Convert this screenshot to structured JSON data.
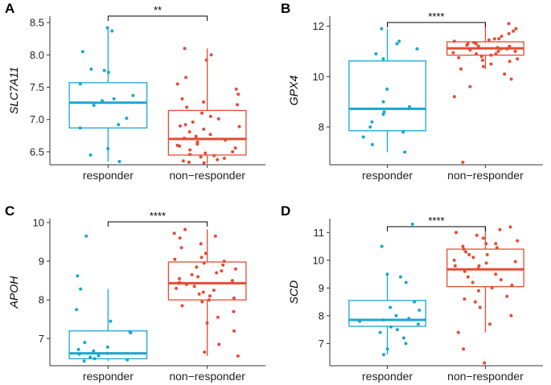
{
  "colors": {
    "responder": "#1aa7cf",
    "non_responder": "#e64b35",
    "axis": "#333333"
  },
  "chart_data": [
    {
      "panel": "A",
      "type": "box",
      "ylabel": "SLC7A11",
      "significance": "**",
      "categories": [
        "responder",
        "non−responder"
      ],
      "yticks": [
        6.5,
        7.0,
        7.5,
        8.0,
        8.5
      ],
      "ytick_labels": [
        "6.5",
        "7.0",
        "7.5",
        "8.0",
        "8.5"
      ],
      "ylim": [
        6.3,
        8.6
      ],
      "boxes": [
        {
          "min": 6.35,
          "q1": 6.87,
          "median": 7.26,
          "q3": 7.57,
          "max": 8.42
        },
        {
          "min": 6.32,
          "q1": 6.45,
          "median": 6.7,
          "q3": 7.14,
          "max": 8.1
        }
      ],
      "points": [
        [
          8.42,
          8.37,
          8.05,
          7.78,
          7.76,
          7.73,
          7.55,
          7.37,
          7.32,
          7.29,
          7.22,
          7.02,
          6.92,
          6.87,
          6.55,
          6.45,
          6.35
        ],
        [
          8.1,
          8.0,
          7.92,
          7.65,
          7.55,
          7.47,
          7.39,
          7.32,
          7.27,
          7.23,
          7.19,
          7.1,
          7.05,
          7.01,
          6.96,
          6.92,
          6.89,
          6.85,
          6.81,
          6.77,
          6.74,
          6.71,
          6.68,
          6.65,
          6.62,
          6.59,
          6.56,
          6.53,
          6.5,
          6.48,
          6.46,
          6.44,
          6.42,
          6.4,
          6.38,
          6.36,
          6.34,
          6.33,
          6.9,
          6.6
        ]
      ]
    },
    {
      "panel": "B",
      "type": "box",
      "ylabel": "GPX4",
      "significance": "****",
      "categories": [
        "responder",
        "non−responder"
      ],
      "yticks": [
        8,
        10,
        12
      ],
      "ytick_labels": [
        "8",
        "10",
        "12"
      ],
      "ylim": [
        6.5,
        12.4
      ],
      "boxes": [
        {
          "min": 7.0,
          "q1": 7.85,
          "median": 8.72,
          "q3": 10.62,
          "max": 11.9
        },
        {
          "min": 10.3,
          "q1": 10.85,
          "median": 11.12,
          "q3": 11.38,
          "max": 12.1
        }
      ],
      "points": [
        [
          11.9,
          11.4,
          11.3,
          11.1,
          10.9,
          10.7,
          9.5,
          9.0,
          8.8,
          8.6,
          8.5,
          8.2,
          8.0,
          7.8,
          7.6,
          7.3,
          7.0
        ],
        [
          12.1,
          11.9,
          11.8,
          11.7,
          11.6,
          11.5,
          11.45,
          11.4,
          11.35,
          11.3,
          11.25,
          11.2,
          11.15,
          11.1,
          11.05,
          11.0,
          10.95,
          10.9,
          10.85,
          10.8,
          10.75,
          10.7,
          10.65,
          10.6,
          10.5,
          10.4,
          10.3,
          10.1,
          9.9,
          9.6,
          9.2,
          6.6,
          11.5,
          11.0,
          10.9,
          11.2,
          11.3,
          11.1
        ]
      ]
    },
    {
      "panel": "C",
      "type": "box",
      "ylabel": "APOH",
      "significance": "****",
      "categories": [
        "responder",
        "non−responder"
      ],
      "yticks": [
        7,
        8,
        9,
        10
      ],
      "ytick_labels": [
        "7",
        "8",
        "9",
        "10"
      ],
      "ylim": [
        6.3,
        10.1
      ],
      "boxes": [
        {
          "min": 6.42,
          "q1": 6.48,
          "median": 6.62,
          "q3": 7.2,
          "max": 8.28
        },
        {
          "min": 6.55,
          "q1": 8.0,
          "median": 8.43,
          "q3": 8.98,
          "max": 9.82
        }
      ],
      "points": [
        [
          9.65,
          8.62,
          8.28,
          7.75,
          7.45,
          7.18,
          7.15,
          6.9,
          6.78,
          6.72,
          6.68,
          6.62,
          6.6,
          6.56,
          6.52,
          6.48,
          6.45,
          6.42
        ],
        [
          9.82,
          9.72,
          9.65,
          9.6,
          9.45,
          9.35,
          9.2,
          9.1,
          9.05,
          9.0,
          8.95,
          8.9,
          8.85,
          8.8,
          8.75,
          8.7,
          8.65,
          8.6,
          8.55,
          8.5,
          8.45,
          8.43,
          8.4,
          8.35,
          8.3,
          8.25,
          8.2,
          8.15,
          8.1,
          8.05,
          8.0,
          7.95,
          7.85,
          7.7,
          7.55,
          7.4,
          7.2,
          6.85,
          6.65,
          6.55
        ]
      ]
    },
    {
      "panel": "D",
      "type": "box",
      "ylabel": "SCD",
      "significance": "****",
      "categories": [
        "responder",
        "non−responder"
      ],
      "yticks": [
        7,
        8,
        9,
        10,
        11
      ],
      "ytick_labels": [
        "7",
        "8",
        "9",
        "10",
        "11"
      ],
      "ylim": [
        6.2,
        11.5
      ],
      "boxes": [
        {
          "min": 6.6,
          "q1": 7.62,
          "median": 7.85,
          "q3": 8.55,
          "max": 9.5
        },
        {
          "min": 7.4,
          "q1": 9.05,
          "median": 9.67,
          "q3": 10.4,
          "max": 11.2
        }
      ],
      "points": [
        [
          11.3,
          10.5,
          9.5,
          9.4,
          9.2,
          8.5,
          8.3,
          8.2,
          8.0,
          7.9,
          7.85,
          7.8,
          7.7,
          7.6,
          7.5,
          7.4,
          7.2,
          7.0,
          6.8,
          6.6
        ],
        [
          11.2,
          11.1,
          11.0,
          10.9,
          10.8,
          10.7,
          10.6,
          10.5,
          10.45,
          10.4,
          10.3,
          10.2,
          10.1,
          10.0,
          9.95,
          9.9,
          9.8,
          9.7,
          9.6,
          9.5,
          9.4,
          9.3,
          9.2,
          9.1,
          9.0,
          8.9,
          8.7,
          8.6,
          8.5,
          8.3,
          8.0,
          7.7,
          7.4,
          6.8,
          6.3,
          10.2,
          9.8,
          10.6
        ]
      ]
    }
  ]
}
